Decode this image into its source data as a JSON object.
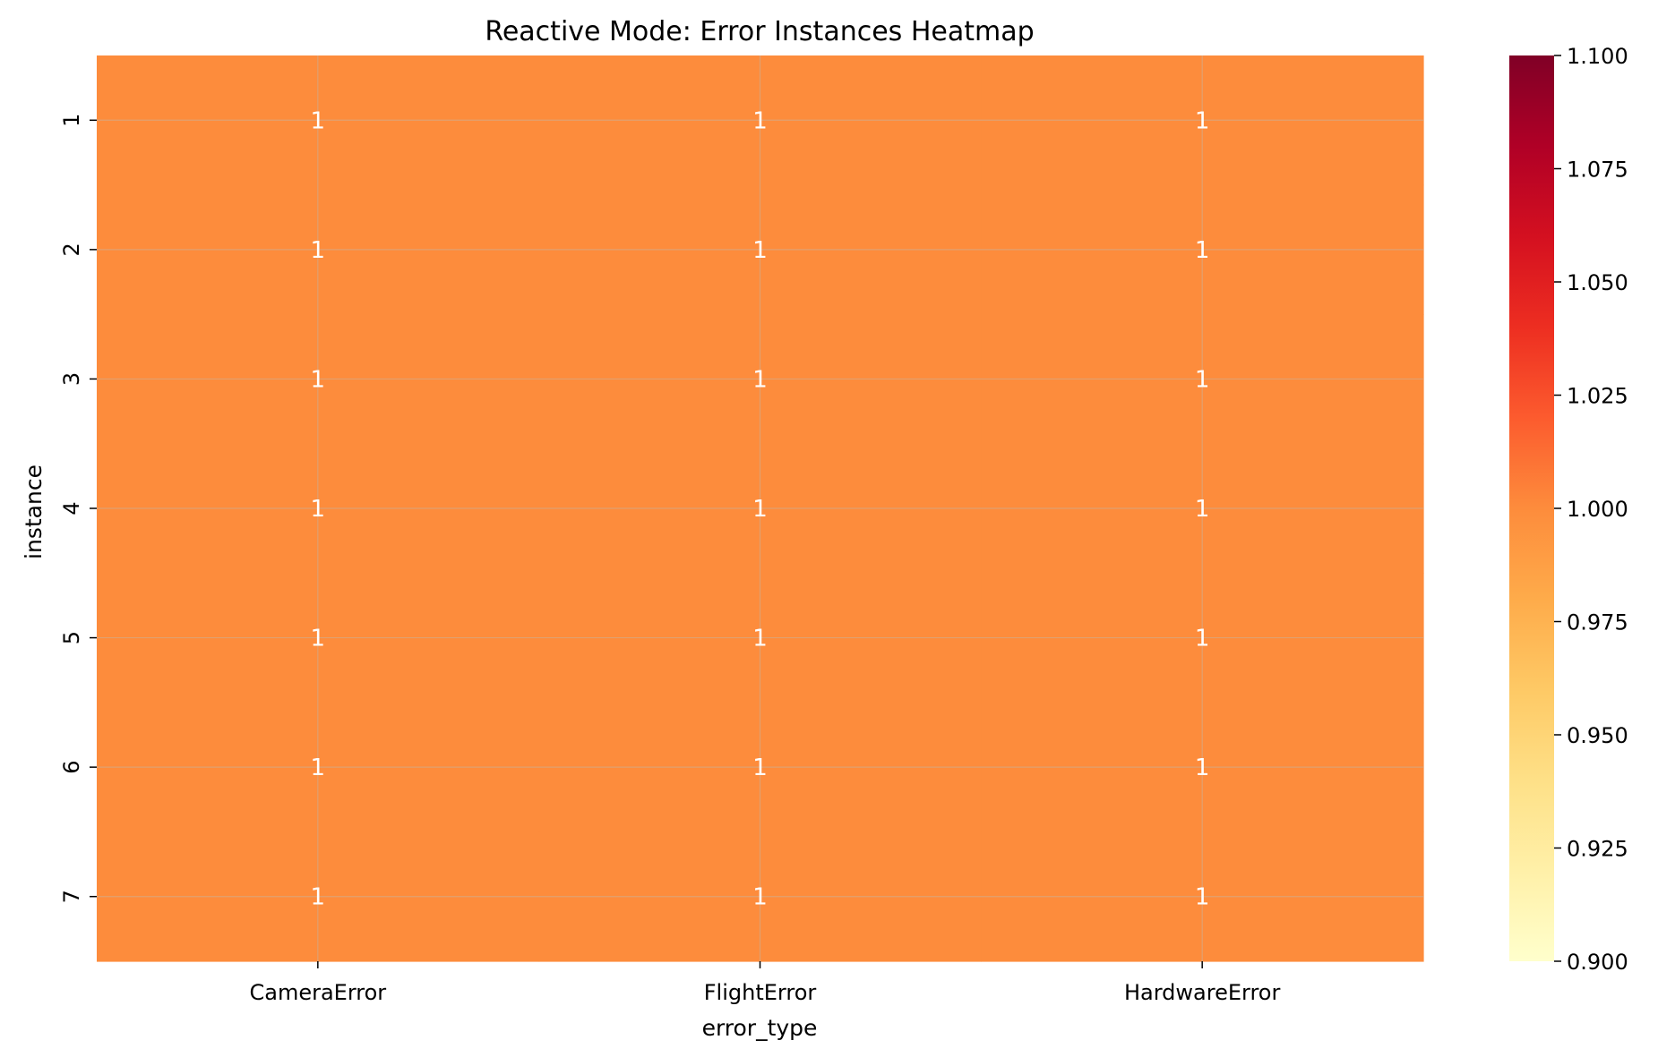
{
  "chart_data": {
    "type": "heatmap",
    "title": "Reactive Mode: Error Instances Heatmap",
    "xlabel": "error_type",
    "ylabel": "instance",
    "x_categories": [
      "CameraError",
      "FlightError",
      "HardwareError"
    ],
    "y_categories": [
      "1",
      "2",
      "3",
      "4",
      "5",
      "6",
      "7"
    ],
    "values": [
      [
        1,
        1,
        1
      ],
      [
        1,
        1,
        1
      ],
      [
        1,
        1,
        1
      ],
      [
        1,
        1,
        1
      ],
      [
        1,
        1,
        1
      ],
      [
        1,
        1,
        1
      ],
      [
        1,
        1,
        1
      ]
    ],
    "annotations": true,
    "grid": true,
    "colormap": "YlOrRd",
    "colorbar": {
      "vmin": 0.9,
      "vmax": 1.1,
      "ticks": [
        "0.900",
        "0.925",
        "0.950",
        "0.975",
        "1.000",
        "1.025",
        "1.050",
        "1.075",
        "1.100"
      ],
      "tick_values": [
        0.9,
        0.925,
        0.95,
        0.975,
        1.0,
        1.025,
        1.05,
        1.075,
        1.1
      ],
      "colors": [
        "#ffffcc",
        "#fff0a8",
        "#fee087",
        "#fec965",
        "#feab4a",
        "#fd8c3c",
        "#fc5b2e",
        "#ed2e21",
        "#d41020",
        "#b00026",
        "#800026"
      ]
    },
    "cell_color": "#fd8c3c",
    "gridline_color": "#e0a070"
  }
}
